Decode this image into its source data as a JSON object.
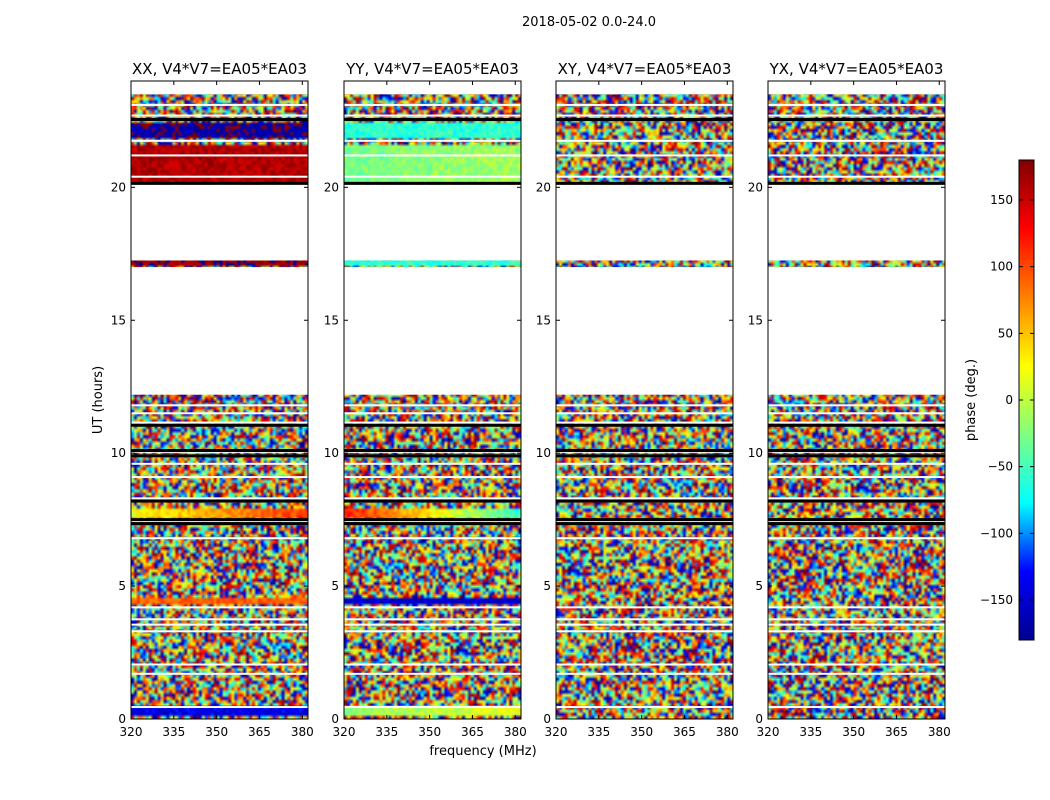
{
  "suptitle": "2018-05-02 0.0-24.0",
  "chart_data": {
    "type": "heatmap",
    "xlabel": "frequency (MHz)",
    "ylabel": "UT (hours)",
    "xlim": [
      320,
      382
    ],
    "ylim": [
      0,
      24
    ],
    "x_ticks": [
      320,
      335,
      350,
      365,
      380
    ],
    "y_ticks": [
      0,
      5,
      10,
      15,
      20
    ],
    "colorbar": {
      "label": "phase (deg.)",
      "range": [
        -180,
        180
      ],
      "ticks": [
        -150,
        -100,
        -50,
        0,
        50,
        100,
        150
      ],
      "tick_labels": [
        "−150",
        "−100",
        "−50",
        "0",
        "50",
        "100",
        "150"
      ],
      "colormap": [
        "#00008f",
        "#0000ff",
        "#00ffff",
        "#80ff80",
        "#ffff00",
        "#ff8000",
        "#ff0000",
        "#800000"
      ]
    },
    "gap_rows_ut": [
      [
        12.2,
        17.0
      ],
      [
        17.25,
        20.1
      ],
      [
        23.5,
        24.0
      ]
    ],
    "flag_lines_ut": [
      0.45,
      1.7,
      2.05,
      3.3,
      3.55,
      3.75,
      4.2,
      6.8,
      7.45,
      8.3,
      9.1,
      9.6,
      10.05,
      11.15,
      11.5,
      11.8,
      20.4,
      21.2,
      21.75,
      22.7,
      23.1
    ],
    "dark_lines_ut": [
      7.35,
      7.5,
      8.2,
      9.9,
      10.1,
      11.05,
      20.15,
      22.55
    ],
    "panels": [
      {
        "title": "XX, V4*V7=EA05*EA03",
        "bands": [
          {
            "ut": [
              0.1,
              0.45
            ],
            "phase": -140,
            "slope": 0
          },
          {
            "ut": [
              4.3,
              4.6
            ],
            "phase": 90,
            "slope": 0
          },
          {
            "ut": [
              7.6,
              7.95
            ],
            "phase": 20,
            "slope": 90
          },
          {
            "ut": [
              20.2,
              21.6
            ],
            "phase": 160,
            "slope": 0
          },
          {
            "ut": [
              21.9,
              22.4
            ],
            "phase": -170,
            "slope": 0
          },
          {
            "ut": [
              23.7,
              24.0
            ],
            "phase": -10,
            "slope": 0
          },
          {
            "ut": [
              17.05,
              17.25
            ],
            "phase": 170,
            "slope": 0
          }
        ]
      },
      {
        "title": "YY, V4*V7=EA05*EA03",
        "bands": [
          {
            "ut": [
              0.1,
              0.45
            ],
            "phase": -20,
            "slope": 40
          },
          {
            "ut": [
              4.3,
              4.6
            ],
            "phase": -150,
            "slope": 0
          },
          {
            "ut": [
              7.6,
              7.95
            ],
            "phase": 120,
            "slope": -180
          },
          {
            "ut": [
              20.2,
              21.6
            ],
            "phase": -30,
            "slope": 20
          },
          {
            "ut": [
              21.9,
              22.4
            ],
            "phase": -60,
            "slope": 0
          },
          {
            "ut": [
              23.7,
              24.0
            ],
            "phase": 150,
            "slope": -250
          },
          {
            "ut": [
              17.05,
              17.25
            ],
            "phase": -60,
            "slope": 0
          }
        ]
      },
      {
        "title": "XY, V4*V7=EA05*EA03",
        "bands": []
      },
      {
        "title": "YX, V4*V7=EA05*EA03",
        "bands": []
      }
    ]
  }
}
